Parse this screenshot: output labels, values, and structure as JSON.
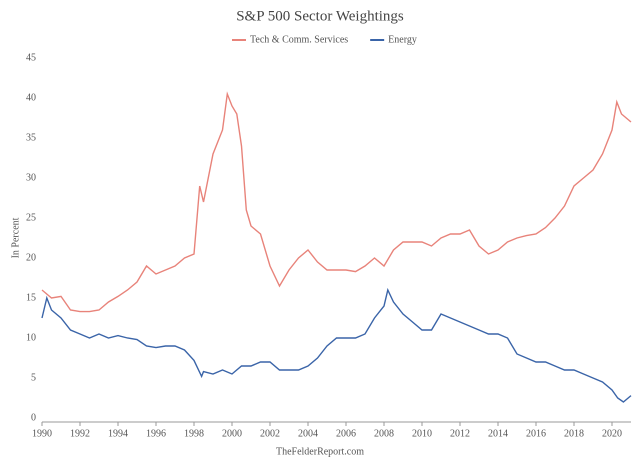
{
  "chart_data": {
    "type": "line",
    "title": "S&P 500 Sector Weightings",
    "ylabel": "In Percent",
    "source": "TheFelderReport.com",
    "xlim": [
      1990,
      2021
    ],
    "xticks": [
      1990,
      1992,
      1994,
      1996,
      1998,
      2000,
      2002,
      2004,
      2006,
      2008,
      2010,
      2012,
      2014,
      2016,
      2018,
      2020
    ],
    "ylim": [
      0,
      45
    ],
    "yticks": [
      0,
      5,
      10,
      15,
      20,
      25,
      30,
      35,
      40,
      45
    ],
    "grid": false,
    "legend": "top",
    "series": [
      {
        "name": "Tech & Comm. Services",
        "color": "#e8837a",
        "x": [
          1990,
          1990.5,
          1991,
          1991.5,
          1992,
          1992.5,
          1993,
          1993.5,
          1994,
          1994.5,
          1995,
          1995.5,
          1996,
          1996.5,
          1997,
          1997.5,
          1998,
          1998.3,
          1998.5,
          1999,
          1999.5,
          1999.75,
          2000,
          2000.25,
          2000.5,
          2000.75,
          2001,
          2001.5,
          2002,
          2002.5,
          2003,
          2003.5,
          2004,
          2004.5,
          2005,
          2005.5,
          2006,
          2006.5,
          2007,
          2007.5,
          2008,
          2008.5,
          2009,
          2009.5,
          2010,
          2010.5,
          2011,
          2011.5,
          2012,
          2012.5,
          2013,
          2013.5,
          2014,
          2014.5,
          2015,
          2015.5,
          2016,
          2016.5,
          2017,
          2017.5,
          2018,
          2018.5,
          2019,
          2019.5,
          2020,
          2020.25,
          2020.5,
          2021
        ],
        "values": [
          16,
          15,
          15.2,
          13.5,
          13.3,
          13.3,
          13.5,
          14.5,
          15.2,
          16,
          17,
          19,
          18,
          18.5,
          19,
          20,
          20.5,
          29,
          27,
          33,
          36,
          40.5,
          39,
          38,
          34,
          26,
          24,
          23,
          19,
          16.5,
          18.5,
          20,
          21,
          19.5,
          18.5,
          18.5,
          18.5,
          18.3,
          19,
          20,
          19,
          21,
          22,
          22,
          22,
          21.5,
          22.5,
          23,
          23,
          23.5,
          21.5,
          20.5,
          21,
          22,
          22.5,
          22.8,
          23,
          23.8,
          25,
          26.5,
          29,
          30,
          31,
          33,
          36,
          39.5,
          38,
          37
        ]
      },
      {
        "name": "Energy",
        "color": "#3a64a8",
        "x": [
          1990,
          1990.25,
          1990.5,
          1991,
          1991.5,
          1992,
          1992.5,
          1993,
          1993.5,
          1994,
          1994.5,
          1995,
          1995.5,
          1996,
          1996.5,
          1997,
          1997.5,
          1998,
          1998.4,
          1998.5,
          1999,
          1999.5,
          2000,
          2000.5,
          2001,
          2001.5,
          2002,
          2002.5,
          2003,
          2003.5,
          2004,
          2004.5,
          2005,
          2005.5,
          2006,
          2006.5,
          2007,
          2007.5,
          2008,
          2008.2,
          2008.5,
          2009,
          2009.5,
          2010,
          2010.5,
          2011,
          2011.5,
          2012,
          2012.5,
          2013,
          2013.5,
          2014,
          2014.5,
          2015,
          2015.5,
          2016,
          2016.5,
          2017,
          2017.5,
          2018,
          2018.5,
          2019,
          2019.5,
          2020,
          2020.3,
          2020.6,
          2021
        ],
        "values": [
          12.5,
          15,
          13.5,
          12.5,
          11,
          10.5,
          10,
          10.5,
          10,
          10.3,
          10,
          9.8,
          9,
          8.8,
          9,
          9,
          8.5,
          7.2,
          5.2,
          5.8,
          5.5,
          6,
          5.5,
          6.5,
          6.5,
          7,
          7,
          6,
          6,
          6,
          6.5,
          7.5,
          9,
          10,
          10,
          10,
          10.5,
          12.5,
          14,
          16,
          14.5,
          13,
          12,
          11,
          11,
          13,
          12.5,
          12,
          11.5,
          11,
          10.5,
          10.5,
          10,
          8,
          7.5,
          7,
          7,
          6.5,
          6,
          6,
          5.5,
          5,
          4.5,
          3.5,
          2.5,
          2,
          2.8
        ]
      }
    ]
  }
}
